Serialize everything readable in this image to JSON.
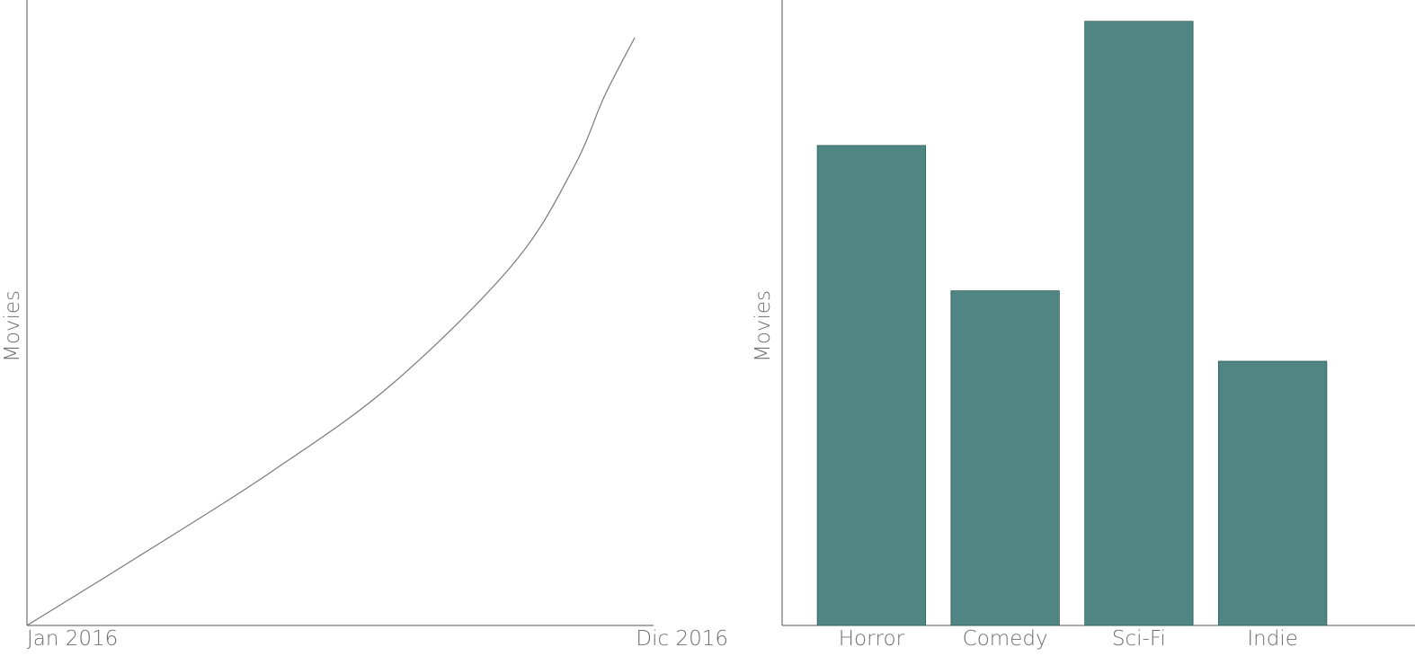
{
  "chart_data": [
    {
      "type": "line",
      "title": "",
      "xlabel": "",
      "ylabel": "Movies",
      "x_tick_labels": [
        "Jan 2016",
        "Dic 2016"
      ],
      "x": [
        0,
        0.2,
        0.4,
        0.6,
        0.8,
        0.9,
        0.95,
        1.0
      ],
      "values": [
        0,
        0.128,
        0.26,
        0.41,
        0.615,
        0.78,
        0.9,
        1.0
      ],
      "grid": false,
      "color": "#7a7a7a"
    },
    {
      "type": "bar",
      "title": "",
      "xlabel": "",
      "ylabel": "Movies",
      "categories": [
        "Horror",
        "Comedy",
        "Sci-Fi",
        "Indie"
      ],
      "values": [
        545,
        380,
        686,
        300
      ],
      "ylim": [
        0,
        700
      ],
      "grid": false,
      "color": "#4f8683"
    }
  ]
}
